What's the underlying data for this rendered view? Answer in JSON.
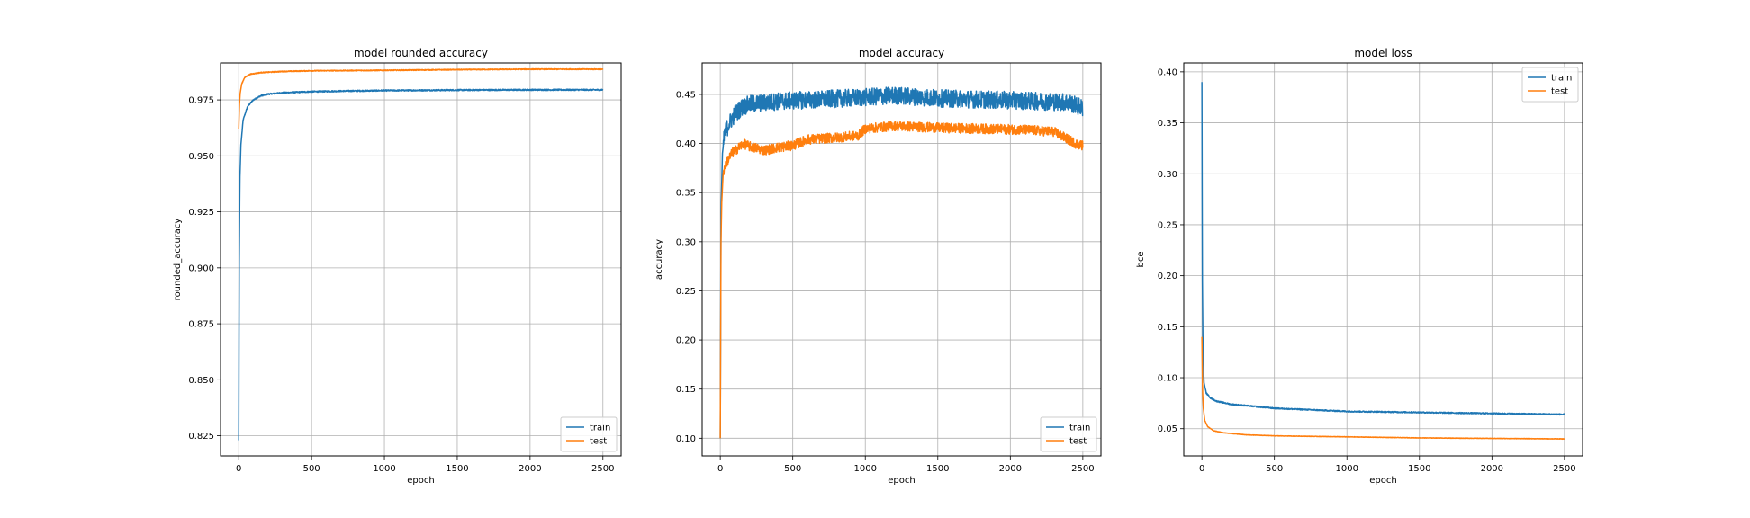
{
  "chart_data": [
    {
      "type": "line",
      "title": "model rounded accuracy",
      "xlabel": "epoch",
      "ylabel": "rounded_accuracy",
      "xlim": [
        -125,
        2625
      ],
      "ylim": [
        0.816,
        0.9915
      ],
      "xticks": [
        0,
        500,
        1000,
        1500,
        2000,
        2500
      ],
      "xtick_labels": [
        "0",
        "500",
        "1000",
        "1500",
        "2000",
        "2500"
      ],
      "yticks": [
        0.825,
        0.85,
        0.875,
        0.9,
        0.925,
        0.95,
        0.975
      ],
      "ytick_labels": [
        "0.825",
        "0.850",
        "0.875",
        "0.900",
        "0.925",
        "0.950",
        "0.975"
      ],
      "grid": true,
      "legend_loc": "lower right",
      "series": [
        {
          "name": "train",
          "color": "#1f77b4",
          "noise": 0.0003,
          "x": [
            0,
            3,
            8,
            15,
            30,
            60,
            100,
            150,
            200,
            300,
            500,
            750,
            1000,
            1500,
            2000,
            2500
          ],
          "y": [
            0.823,
            0.9,
            0.94,
            0.955,
            0.966,
            0.972,
            0.975,
            0.9768,
            0.9776,
            0.9782,
            0.9787,
            0.979,
            0.9792,
            0.9794,
            0.9795,
            0.9795
          ]
        },
        {
          "name": "test",
          "color": "#ff7f0e",
          "noise": 0.0002,
          "x": [
            0,
            5,
            10,
            20,
            40,
            80,
            150,
            300,
            500,
            1000,
            1500,
            2000,
            2500
          ],
          "y": [
            0.962,
            0.973,
            0.978,
            0.982,
            0.985,
            0.9865,
            0.9872,
            0.9877,
            0.988,
            0.9882,
            0.9885,
            0.9887,
            0.9887
          ]
        }
      ]
    },
    {
      "type": "line",
      "title": "model accuracy",
      "xlabel": "epoch",
      "ylabel": "accuracy",
      "xlim": [
        -125,
        2625
      ],
      "ylim": [
        0.082,
        0.482
      ],
      "xticks": [
        0,
        500,
        1000,
        1500,
        2000,
        2500
      ],
      "xtick_labels": [
        "0",
        "500",
        "1000",
        "1500",
        "2000",
        "2500"
      ],
      "yticks": [
        0.1,
        0.15,
        0.2,
        0.25,
        0.3,
        0.35,
        0.4,
        0.45
      ],
      "ytick_labels": [
        "0.10",
        "0.15",
        "0.20",
        "0.25",
        "0.30",
        "0.35",
        "0.40",
        "0.45"
      ],
      "grid": true,
      "legend_loc": "lower right",
      "series": [
        {
          "name": "train",
          "color": "#1f77b4",
          "noise": 0.009,
          "x": [
            0,
            5,
            15,
            30,
            60,
            100,
            150,
            200,
            400,
            700,
            1000,
            1200,
            1500,
            2000,
            2400,
            2500
          ],
          "y": [
            0.1,
            0.33,
            0.39,
            0.41,
            0.42,
            0.43,
            0.437,
            0.44,
            0.443,
            0.445,
            0.447,
            0.449,
            0.446,
            0.444,
            0.442,
            0.436
          ]
        },
        {
          "name": "test",
          "color": "#ff7f0e",
          "noise": 0.005,
          "x": [
            0,
            5,
            10,
            20,
            40,
            80,
            120,
            160,
            200,
            260,
            300,
            400,
            500,
            600,
            700,
            800,
            950,
            1000,
            1200,
            1500,
            1800,
            2100,
            2300,
            2450,
            2500
          ],
          "y": [
            0.1,
            0.3,
            0.34,
            0.37,
            0.38,
            0.39,
            0.395,
            0.4,
            0.397,
            0.395,
            0.393,
            0.396,
            0.398,
            0.404,
            0.405,
            0.406,
            0.408,
            0.415,
            0.418,
            0.416,
            0.415,
            0.414,
            0.412,
            0.4,
            0.398
          ]
        }
      ]
    },
    {
      "type": "line",
      "title": "model loss",
      "xlabel": "epoch",
      "ylabel": "bce",
      "xlim": [
        -125,
        2625
      ],
      "ylim": [
        0.0233,
        0.4087
      ],
      "xticks": [
        0,
        500,
        1000,
        1500,
        2000,
        2500
      ],
      "xtick_labels": [
        "0",
        "500",
        "1000",
        "1500",
        "2000",
        "2500"
      ],
      "yticks": [
        0.05,
        0.1,
        0.15,
        0.2,
        0.25,
        0.3,
        0.35,
        0.4
      ],
      "ytick_labels": [
        "0.05",
        "0.10",
        "0.15",
        "0.20",
        "0.25",
        "0.30",
        "0.35",
        "0.40"
      ],
      "grid": true,
      "legend_loc": "upper right",
      "series": [
        {
          "name": "train",
          "color": "#1f77b4",
          "noise": 0.0006,
          "x": [
            0,
            3,
            8,
            15,
            30,
            60,
            100,
            200,
            500,
            1000,
            1500,
            2000,
            2500
          ],
          "y": [
            0.39,
            0.2,
            0.12,
            0.095,
            0.085,
            0.08,
            0.077,
            0.074,
            0.07,
            0.067,
            0.066,
            0.065,
            0.064
          ]
        },
        {
          "name": "test",
          "color": "#ff7f0e",
          "noise": 0.0002,
          "x": [
            0,
            5,
            10,
            20,
            40,
            80,
            150,
            300,
            500,
            1000,
            1500,
            2000,
            2500
          ],
          "y": [
            0.14,
            0.085,
            0.07,
            0.058,
            0.052,
            0.048,
            0.046,
            0.044,
            0.043,
            0.042,
            0.041,
            0.0405,
            0.04
          ]
        }
      ]
    }
  ]
}
